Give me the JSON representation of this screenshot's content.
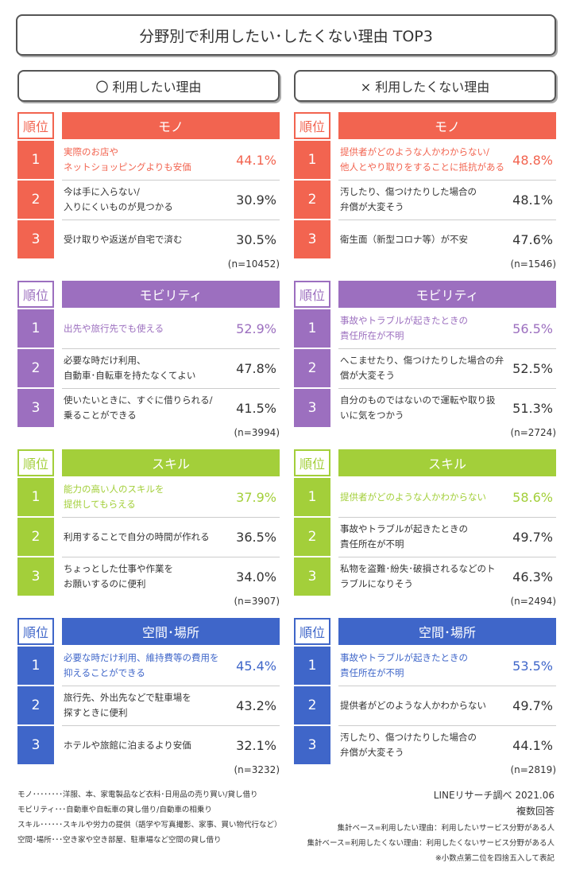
{
  "header": {
    "title": "分野別で利用したい･したくない理由 TOP3"
  },
  "columns": [
    {
      "heading": "〇 利用したい理由",
      "sections": [
        {
          "rank_label": "順位",
          "category": "モノ",
          "rows": [
            {
              "rank": "1",
              "reason": [
                "実際のお店や",
                "ネットショッピングよりも安価"
              ],
              "percent": "44.1%"
            },
            {
              "rank": "2",
              "reason": [
                "今は手に入らない/",
                "入りにくいものが見つかる"
              ],
              "percent": "30.9%"
            },
            {
              "rank": "3",
              "reason": [
                "受け取りや返送が自宅で済む"
              ],
              "percent": "30.5%"
            }
          ],
          "n": "(n=10452)"
        },
        {
          "rank_label": "順位",
          "category": "モビリティ",
          "rows": [
            {
              "rank": "1",
              "reason": [
                "出先や旅行先でも使える"
              ],
              "percent": "52.9%"
            },
            {
              "rank": "2",
              "reason": [
                "必要な時だけ利用、",
                "自動車･自転車を持たなくてよい"
              ],
              "percent": "47.8%"
            },
            {
              "rank": "3",
              "reason": [
                "使いたいときに、すぐに借りられる/",
                "乗ることができる"
              ],
              "percent": "41.5%"
            }
          ],
          "n": "(n=3994)"
        },
        {
          "rank_label": "順位",
          "category": "スキル",
          "rows": [
            {
              "rank": "1",
              "reason": [
                "能力の高い人のスキルを",
                "提供してもらえる"
              ],
              "percent": "37.9%"
            },
            {
              "rank": "2",
              "reason": [
                "利用することで自分の時間が作れる"
              ],
              "percent": "36.5%"
            },
            {
              "rank": "3",
              "reason": [
                "ちょっとした仕事や作業を",
                "お願いするのに便利"
              ],
              "percent": "34.0%"
            }
          ],
          "n": "(n=3907)"
        },
        {
          "rank_label": "順位",
          "category": "空間･場所",
          "rows": [
            {
              "rank": "1",
              "reason": [
                "必要な時だけ利用、維持費等の費用を",
                "抑えることができる"
              ],
              "percent": "45.4%"
            },
            {
              "rank": "2",
              "reason": [
                "旅行先、外出先などで駐車場を",
                "探すときに便利"
              ],
              "percent": "43.2%"
            },
            {
              "rank": "3",
              "reason": [
                "ホテルや旅館に泊まるより安価"
              ],
              "percent": "32.1%"
            }
          ],
          "n": "(n=3232)"
        }
      ]
    },
    {
      "heading": "× 利用したくない理由",
      "sections": [
        {
          "rank_label": "順位",
          "category": "モノ",
          "rows": [
            {
              "rank": "1",
              "reason": [
                "提供者がどのような人かわからない/",
                "他人とやり取りをすることに抵抗がある"
              ],
              "percent": "48.8%"
            },
            {
              "rank": "2",
              "reason": [
                "汚したり、傷つけたりした場合の",
                "弁償が大変そう"
              ],
              "percent": "48.1%"
            },
            {
              "rank": "3",
              "reason": [
                "衛生面（新型コロナ等）が不安"
              ],
              "percent": "47.6%"
            }
          ],
          "n": "(n=1546)"
        },
        {
          "rank_label": "順位",
          "category": "モビリティ",
          "rows": [
            {
              "rank": "1",
              "reason": [
                "事故やトラブルが起きたときの",
                "責任所在が不明"
              ],
              "percent": "56.5%"
            },
            {
              "rank": "2",
              "reason": [
                "へこませたり、傷つけたりした場合の弁",
                "償が大変そう"
              ],
              "percent": "52.5%"
            },
            {
              "rank": "3",
              "reason": [
                "自分のものではないので運転や取り扱",
                "いに気をつかう"
              ],
              "percent": "51.3%"
            }
          ],
          "n": "(n=2724)"
        },
        {
          "rank_label": "順位",
          "category": "スキル",
          "rows": [
            {
              "rank": "1",
              "reason": [
                "提供者がどのような人かわからない"
              ],
              "percent": "58.6%"
            },
            {
              "rank": "2",
              "reason": [
                "事故やトラブルが起きたときの",
                "責任所在が不明"
              ],
              "percent": "49.7%"
            },
            {
              "rank": "3",
              "reason": [
                "私物を盗難･紛失･破損されるなどのト",
                "ラブルになりそう"
              ],
              "percent": "46.3%"
            }
          ],
          "n": "(n=2494)"
        },
        {
          "rank_label": "順位",
          "category": "空間･場所",
          "rows": [
            {
              "rank": "1",
              "reason": [
                "事故やトラブルが起きたときの",
                "責任所在が不明"
              ],
              "percent": "53.5%"
            },
            {
              "rank": "2",
              "reason": [
                "提供者がどのような人かわからない"
              ],
              "percent": "49.7%"
            },
            {
              "rank": "3",
              "reason": [
                "汚したり、傷つけたりした場合の",
                "弁償が大変そう"
              ],
              "percent": "44.1%"
            }
          ],
          "n": "(n=2819)"
        }
      ]
    }
  ],
  "notes": [
    "モノ････････洋服、本、家電製品など衣料･日用品の売り買い/貸し借り",
    "モビリティ･･･自動車や自転車の貸し借り/自動車の相乗り",
    "スキル･･････スキルや労力の提供（語学や写真撮影、家事、買い物代行など）",
    "空間･場所･･･空き家や空き部屋、駐車場など空間の貸し借り"
  ],
  "credits": [
    "LINEリサーチ調べ 2021.06",
    "複数回答",
    "集計ベース=利用したい理由：利用したいサービス分野がある人",
    "集計ベース=利用したくない理由：利用したくないサービス分野がある人",
    "※小数点第二位を四捨五入して表記"
  ]
}
